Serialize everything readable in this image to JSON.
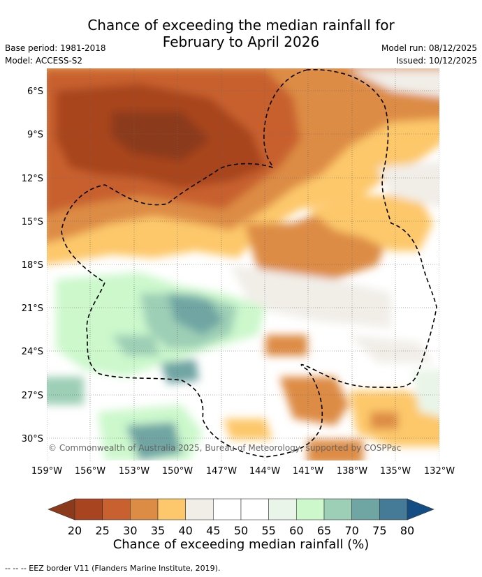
{
  "title_line1": "Chance of exceeding the median rainfall for",
  "title_line2": "February to April 2026",
  "base_period": "Base period: 1981-2018",
  "model": "Model: ACCESS-S2",
  "model_run": "Model run: 08/12/2025",
  "issued": "Issued: 10/12/2025",
  "copyright": "© Commonwealth of Australia 2025, Bureau of Meteorology, supported by COSPPac",
  "lat_labels": [
    "6°S",
    "9°S",
    "12°S",
    "15°S",
    "18°S",
    "21°S",
    "24°S",
    "27°S",
    "30°S"
  ],
  "lon_labels": [
    "159°W",
    "156°W",
    "153°W",
    "150°W",
    "147°W",
    "144°W",
    "141°W",
    "138°W",
    "135°W",
    "132°W"
  ],
  "colorbar": {
    "ticks": [
      "20",
      "25",
      "30",
      "35",
      "40",
      "45",
      "50",
      "55",
      "60",
      "65",
      "70",
      "75",
      "80"
    ],
    "colors": [
      "#a8441f",
      "#c8612f",
      "#dd8c45",
      "#fdc86b",
      "#f1eee8",
      "#ffffff",
      "#ffffff",
      "#e9f5e8",
      "#ccf8cc",
      "#9dcfb6",
      "#6fa5a3",
      "#457b96"
    ],
    "under_color": "#8b3a1c",
    "over_color": "#124e84",
    "title": "Chance of exceeding median rainfall (%)"
  },
  "legend_line": "--  --  -- EEZ border V11 (Flanders Marine Institute, 2019)."
}
